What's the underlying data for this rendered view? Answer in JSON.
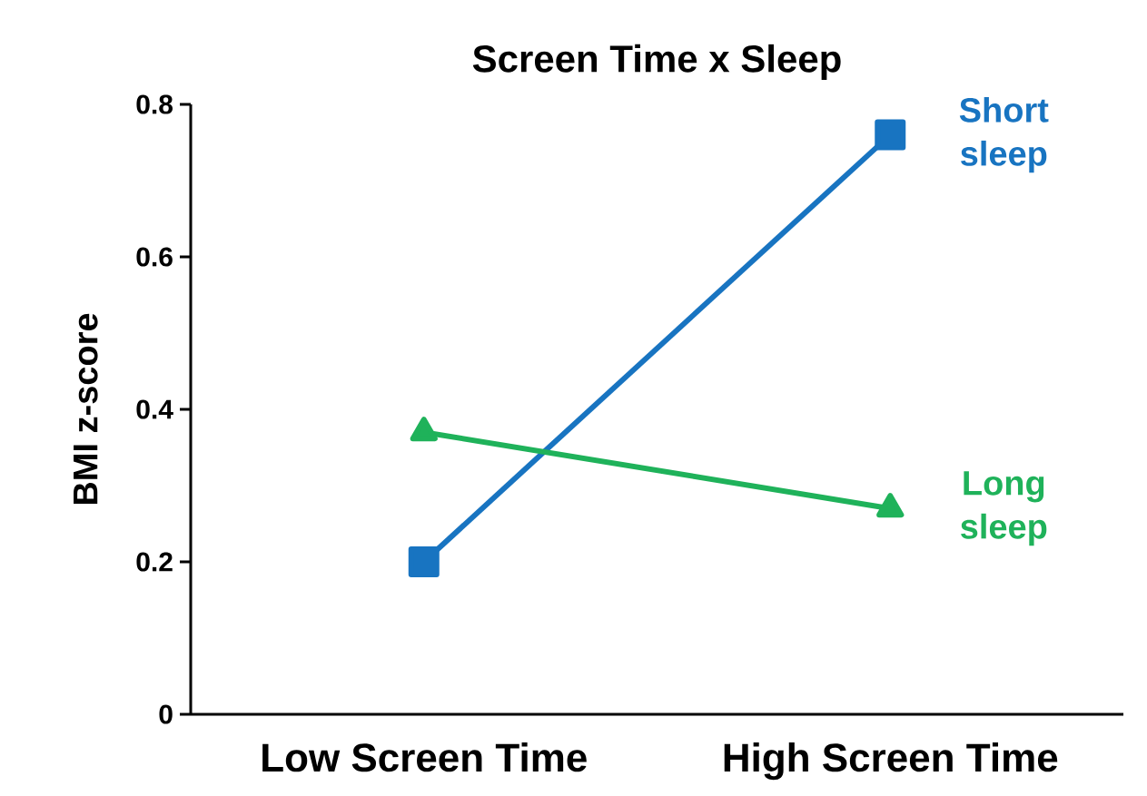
{
  "chart_data": {
    "type": "line",
    "title": "Screen Time x Sleep",
    "ylabel": "BMI z-score",
    "categories": [
      "Low Screen Time",
      "High Screen Time"
    ],
    "series": [
      {
        "name": "Short sleep",
        "color": "#1874c1",
        "marker": "square",
        "values": [
          0.2,
          0.76
        ]
      },
      {
        "name": "Long sleep",
        "color": "#1fb25a",
        "marker": "triangle",
        "values": [
          0.37,
          0.27
        ]
      }
    ],
    "ylim": [
      0,
      0.8
    ],
    "yticks": [
      0,
      0.2,
      0.4,
      0.6,
      0.8
    ],
    "grid": false,
    "legend": false
  }
}
